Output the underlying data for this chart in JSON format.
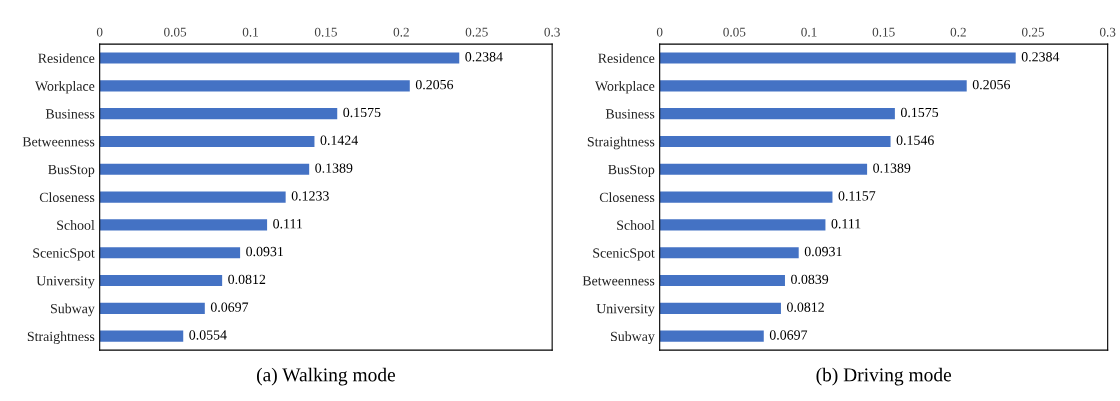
{
  "chart_data": [
    {
      "type": "bar",
      "orientation": "horizontal",
      "title": "(a) Walking mode",
      "categories": [
        "Residence",
        "Workplace",
        "Business",
        "Betweenness",
        "BusStop",
        "Closeness",
        "School",
        "ScenicSpot",
        "University",
        "Subway",
        "Straightness"
      ],
      "values": [
        0.2384,
        0.2056,
        0.1575,
        0.1424,
        0.1389,
        0.1233,
        0.111,
        0.0931,
        0.0812,
        0.0697,
        0.0554
      ],
      "color": "#4472c4",
      "data_labels": true,
      "xlim": [
        0,
        0.3
      ],
      "xticks": [
        0,
        0.05,
        0.1,
        0.15,
        0.2,
        0.25,
        0.3
      ],
      "grid": false,
      "legend": false
    },
    {
      "type": "bar",
      "orientation": "horizontal",
      "title": "(b) Driving mode",
      "categories": [
        "Residence",
        "Workplace",
        "Business",
        "Straightness",
        "BusStop",
        "Closeness",
        "School",
        "ScenicSpot",
        "Betweenness",
        "University",
        "Subway"
      ],
      "values": [
        0.2384,
        0.2056,
        0.1575,
        0.1546,
        0.1389,
        0.1157,
        0.111,
        0.0931,
        0.0839,
        0.0812,
        0.0697
      ],
      "color": "#4472c4",
      "data_labels": true,
      "xlim": [
        0,
        0.3
      ],
      "xticks": [
        0,
        0.05,
        0.1,
        0.15,
        0.2,
        0.25,
        0.3
      ],
      "grid": false,
      "legend": false
    }
  ]
}
